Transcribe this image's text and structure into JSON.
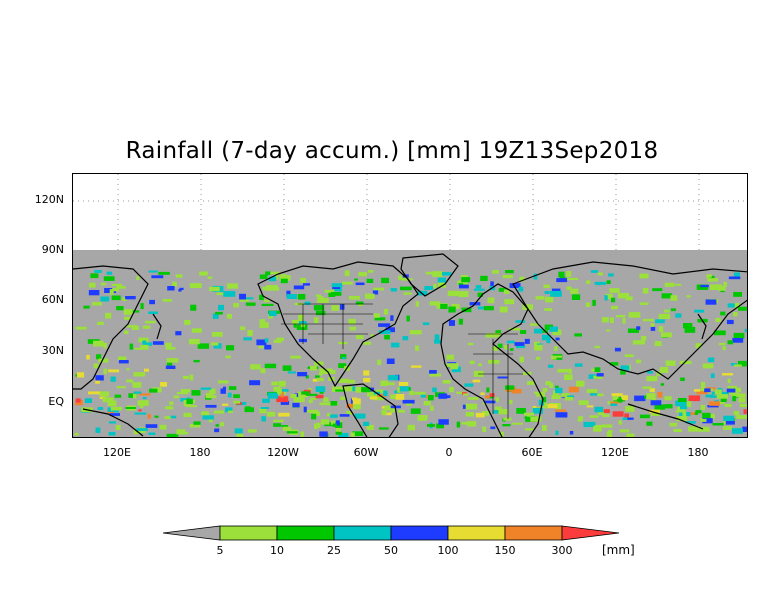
{
  "title": "Rainfall (7-day accum.) [mm] 19Z13Sep2018",
  "y_ticks": [
    "120N",
    "90N",
    "60N",
    "30N",
    "EQ"
  ],
  "x_ticks": [
    "120E",
    "180",
    "120W",
    "60W",
    "0",
    "60E",
    "120E",
    "180"
  ],
  "legend": {
    "labels": [
      "5",
      "10",
      "25",
      "50",
      "100",
      "150",
      "300"
    ],
    "unit": "[mm]",
    "colors": [
      "#a7a7a7",
      "#9be03b",
      "#00c700",
      "#00c3c3",
      "#1e3cff",
      "#e6dc32",
      "#f08228",
      "#fa3c3c"
    ]
  },
  "colors": {
    "land_ocean_dry": "#a7a7a7",
    "coast": "#000000"
  }
}
